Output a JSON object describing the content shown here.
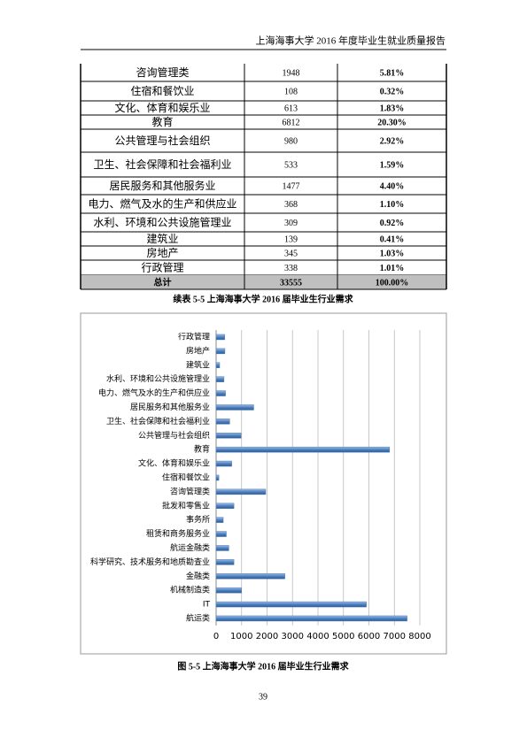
{
  "header": {
    "title": "上海海事大学 2016 年度毕业生就业质量报告"
  },
  "table": {
    "rows": [
      [
        "咨询管理类",
        "1948",
        "5.81%"
      ],
      [
        "住宿和餐饮业",
        "108",
        "0.32%"
      ],
      [
        "文化、体育和娱乐业",
        "613",
        "1.83%"
      ],
      [
        "教育",
        "6812",
        "20.30%"
      ],
      [
        "公共管理与社会组织",
        "980",
        "2.92%"
      ],
      [
        "卫生、社会保障和社会福利业",
        "533",
        "1.59%"
      ],
      [
        "居民服务和其他服务业",
        "1477",
        "4.40%"
      ],
      [
        "电力、燃气及水的生产和供应业",
        "368",
        "1.10%"
      ],
      [
        "水利、环境和公共设施管理业",
        "309",
        "0.92%"
      ],
      [
        "建筑业",
        "139",
        "0.41%"
      ],
      [
        "房地产",
        "345",
        "1.03%"
      ],
      [
        "行政管理",
        "338",
        "1.01%"
      ],
      [
        "总计",
        "33555",
        "100.00%"
      ]
    ],
    "caption": "续表 5-5 上海海事大学 2016 届毕业生行业需求"
  },
  "figure": {
    "type": "bar",
    "orientation": "horizontal",
    "color": "#4f81bd",
    "categories": [
      "行政管理",
      "房地产",
      "建筑业",
      "水利、环境和公共设施管理业",
      "电力、燃气及水的生产和供应业",
      "居民服务和其他服务业",
      "卫生、社会保障和社会福利业",
      "公共管理与社会组织",
      "教育",
      "文化、体育和娱乐业",
      "住宿和餐饮业",
      "咨询管理类",
      "批发和零售业",
      "事务所",
      "租赁和商务服务业",
      "航运金融类",
      "科学研究、技术服务和地质勘查业",
      "金融类",
      "机械制造类",
      "IT",
      "航运类"
    ],
    "values": [
      338,
      345,
      139,
      309,
      368,
      1477,
      533,
      980,
      6812,
      613,
      108,
      1948,
      700,
      280,
      400,
      500,
      700,
      2700,
      1000,
      5900,
      7500
    ],
    "xlim": [
      0,
      8000
    ],
    "xticks": [
      0,
      1000,
      2000,
      3000,
      4000,
      5000,
      6000,
      7000,
      8000
    ],
    "grid": true,
    "caption": "图 5-5 上海海事大学 2016 届毕业生行业需求"
  },
  "page_number": "39"
}
